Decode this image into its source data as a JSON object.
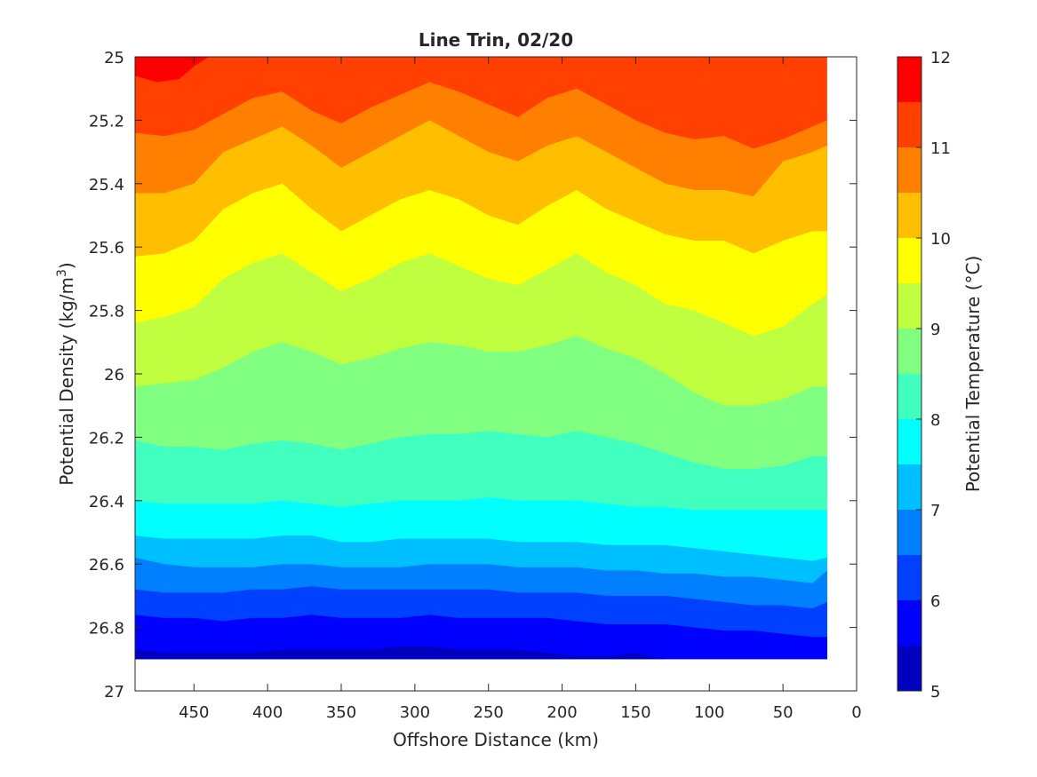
{
  "chart_data": {
    "type": "filled-contour",
    "title": "Line Trin, 02/20",
    "xlabel": "Offshore Distance (km)",
    "ylabel_main": "Potential Density (kg/m",
    "ylabel_sup": "3",
    "ylabel_close": ")",
    "colorbar_label": "Potential Temperature (°C)",
    "xlim": [
      490,
      0
    ],
    "x_reversed": true,
    "ylim": [
      25,
      27
    ],
    "y_reversed": true,
    "x_ticks": [
      450,
      400,
      350,
      300,
      250,
      200,
      150,
      100,
      50,
      0
    ],
    "x_tick_labels": [
      "450",
      "400",
      "350",
      "300",
      "250",
      "200",
      "150",
      "100",
      "50",
      "0"
    ],
    "y_ticks": [
      25,
      25.2,
      25.4,
      25.6,
      25.8,
      26,
      26.2,
      26.4,
      26.6,
      26.8,
      27
    ],
    "y_tick_labels": [
      "25",
      "25.2",
      "25.4",
      "25.6",
      "25.8",
      "26",
      "26.2",
      "26.4",
      "26.6",
      "26.8",
      "27"
    ],
    "colorbar_ticks": [
      5,
      6,
      7,
      8,
      9,
      10,
      11,
      12
    ],
    "colorbar_tick_labels": [
      "5",
      "6",
      "7",
      "8",
      "9",
      "10",
      "11",
      "12"
    ],
    "colorbar_range": [
      5,
      12
    ],
    "levels": [
      5,
      5.5,
      6,
      6.5,
      7,
      7.5,
      8,
      8.5,
      9,
      9.5,
      10,
      10.5,
      11,
      11.5,
      12
    ],
    "colors": [
      "#000080",
      "#0000BF",
      "#0000FF",
      "#0040FF",
      "#0080FF",
      "#00BFFF",
      "#00FFFF",
      "#40FFBF",
      "#80FF80",
      "#BFFF40",
      "#FFFF00",
      "#FFBF00",
      "#FF8000",
      "#FF4000",
      "#FF0000",
      "#BF0000",
      "#800000"
    ],
    "data_x": [
      490,
      470,
      450,
      430,
      410,
      390,
      370,
      350,
      330,
      310,
      290,
      270,
      250,
      230,
      210,
      190,
      170,
      150,
      130,
      110,
      90,
      70,
      50,
      30,
      20
    ],
    "data_bottom_density": [
      26.9,
      26.9,
      26.9,
      26.9,
      26.9,
      26.9,
      26.9,
      26.9,
      26.9,
      26.9,
      26.9,
      26.9,
      26.9,
      26.9,
      26.9,
      26.9,
      26.9,
      26.9,
      26.9,
      26.9,
      26.9,
      26.9,
      26.9,
      26.9,
      26.9
    ],
    "isopycnal_depth_of_isotherms": [
      {
        "level": 11,
        "density": [
          25.24,
          25.25,
          25.23,
          25.18,
          25.13,
          25.11,
          25.17,
          25.21,
          25.16,
          25.12,
          25.08,
          25.11,
          25.15,
          25.19,
          25.13,
          25.1,
          25.15,
          25.2,
          25.24,
          25.26,
          25.25,
          25.29,
          25.26,
          25.22,
          25.2
        ]
      },
      {
        "level": 10.5,
        "density": [
          25.43,
          25.43,
          25.4,
          25.3,
          25.26,
          25.22,
          25.28,
          25.35,
          25.3,
          25.25,
          25.2,
          25.25,
          25.3,
          25.33,
          25.28,
          25.25,
          25.3,
          25.35,
          25.4,
          25.42,
          25.42,
          25.44,
          25.33,
          25.3,
          25.28
        ]
      },
      {
        "level": 10,
        "density": [
          25.63,
          25.62,
          25.58,
          25.48,
          25.43,
          25.4,
          25.48,
          25.55,
          25.5,
          25.45,
          25.42,
          25.45,
          25.5,
          25.53,
          25.47,
          25.42,
          25.48,
          25.52,
          25.56,
          25.58,
          25.58,
          25.62,
          25.58,
          25.55,
          25.55
        ]
      },
      {
        "level": 9.5,
        "density": [
          25.84,
          25.82,
          25.79,
          25.7,
          25.65,
          25.62,
          25.68,
          25.74,
          25.7,
          25.65,
          25.62,
          25.66,
          25.7,
          25.72,
          25.67,
          25.62,
          25.68,
          25.72,
          25.78,
          25.8,
          25.84,
          25.88,
          25.85,
          25.78,
          25.75
        ]
      },
      {
        "level": 9,
        "density": [
          26.04,
          26.03,
          26.02,
          25.98,
          25.93,
          25.9,
          25.93,
          25.97,
          25.95,
          25.92,
          25.9,
          25.91,
          25.93,
          25.93,
          25.91,
          25.88,
          25.92,
          25.95,
          26.0,
          26.06,
          26.1,
          26.1,
          26.08,
          26.04,
          26.04
        ]
      },
      {
        "level": 8.5,
        "density": [
          26.21,
          26.23,
          26.23,
          26.24,
          26.22,
          26.21,
          26.22,
          26.24,
          26.22,
          26.2,
          26.19,
          26.19,
          26.18,
          26.19,
          26.2,
          26.18,
          26.2,
          26.22,
          26.25,
          26.28,
          26.3,
          26.3,
          26.29,
          26.26,
          26.26
        ]
      },
      {
        "level": 8,
        "density": [
          26.4,
          26.41,
          26.41,
          26.41,
          26.41,
          26.4,
          26.41,
          26.42,
          26.41,
          26.4,
          26.4,
          26.4,
          26.39,
          26.4,
          26.4,
          26.4,
          26.41,
          26.42,
          26.42,
          26.43,
          26.43,
          26.43,
          26.43,
          26.43,
          26.43
        ]
      },
      {
        "level": 7.5,
        "density": [
          26.51,
          26.52,
          26.52,
          26.52,
          26.52,
          26.51,
          26.51,
          26.53,
          26.53,
          26.52,
          26.52,
          26.52,
          26.52,
          26.53,
          26.53,
          26.53,
          26.54,
          26.54,
          26.54,
          26.55,
          26.56,
          26.57,
          26.58,
          26.59,
          26.58
        ]
      },
      {
        "level": 7,
        "density": [
          26.58,
          26.6,
          26.61,
          26.61,
          26.61,
          26.6,
          26.6,
          26.61,
          26.61,
          26.61,
          26.6,
          26.6,
          26.6,
          26.61,
          26.61,
          26.61,
          26.62,
          26.62,
          26.63,
          26.63,
          26.64,
          26.64,
          26.65,
          26.66,
          26.62
        ]
      },
      {
        "level": 6.5,
        "density": [
          26.68,
          26.69,
          26.69,
          26.69,
          26.68,
          26.68,
          26.67,
          26.68,
          26.68,
          26.68,
          26.68,
          26.68,
          26.68,
          26.69,
          26.69,
          26.69,
          26.7,
          26.7,
          26.7,
          26.71,
          26.72,
          26.73,
          26.73,
          26.74,
          26.72
        ]
      },
      {
        "level": 6,
        "density": [
          26.76,
          26.77,
          26.77,
          26.78,
          26.77,
          26.77,
          26.76,
          26.77,
          26.77,
          26.77,
          26.76,
          26.77,
          26.77,
          26.77,
          26.77,
          26.78,
          26.79,
          26.79,
          26.79,
          26.8,
          26.81,
          26.81,
          26.82,
          26.83,
          26.83
        ]
      },
      {
        "level": 5.5,
        "density": [
          26.87,
          26.88,
          26.88,
          26.88,
          26.88,
          26.87,
          26.87,
          26.87,
          26.87,
          26.86,
          26.86,
          26.87,
          26.87,
          26.87,
          26.88,
          26.89,
          26.89,
          26.88,
          26.9,
          26.9,
          26.9,
          26.9,
          26.9,
          26.9,
          26.9
        ]
      }
    ],
    "top_warm_patch": {
      "level": 11.5,
      "x": [
        490,
        475,
        460,
        450,
        440
      ],
      "density": [
        25.06,
        25.08,
        25.07,
        25.03,
        25.0
      ]
    },
    "grid": false,
    "colorbar_position": "right"
  }
}
